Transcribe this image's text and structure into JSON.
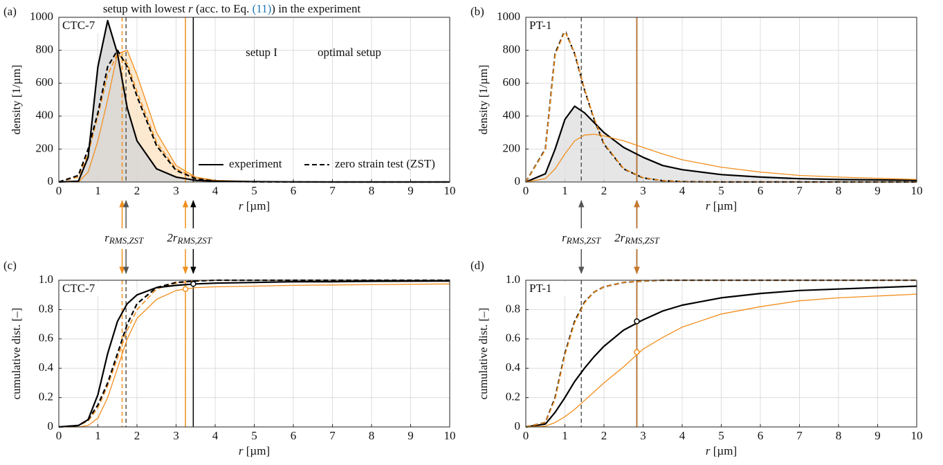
{
  "chart_data": [
    {
      "type": "line",
      "label": "(a)",
      "inset_label": "CTC-7",
      "xlabel_var": "r",
      "xlabel_unit": " [µm]",
      "ylabel": "density [1/µm]",
      "x": [
        0,
        0.5,
        0.75,
        1,
        1.25,
        1.5,
        1.75,
        2,
        2.5,
        3,
        3.5,
        4,
        5,
        6,
        7,
        8,
        10
      ],
      "xlim": [
        0,
        10
      ],
      "xticks": [
        0,
        1,
        2,
        3,
        4,
        5,
        6,
        7,
        8,
        9,
        10
      ],
      "ylim": [
        0,
        1000
      ],
      "yticks": [
        0,
        200,
        400,
        600,
        800,
        1000
      ],
      "grid": true,
      "series": [
        {
          "color": "#f28e1c",
          "dash": false,
          "width": 1.3,
          "fill": "#fbe3c4",
          "values": [
            0,
            0,
            60,
            250,
            500,
            780,
            800,
            650,
            300,
            100,
            30,
            10,
            3,
            1,
            0,
            0,
            0
          ]
        },
        {
          "color": "#f28e1c",
          "dash": true,
          "width": 1.6,
          "values": [
            0,
            30,
            170,
            400,
            650,
            780,
            720,
            550,
            240,
            80,
            25,
            7,
            2,
            0,
            0,
            0,
            0
          ]
        },
        {
          "color": "#000000",
          "dash": false,
          "width": 2.2,
          "fill": "#d4d4d4",
          "values": [
            0,
            5,
            150,
            700,
            980,
            780,
            450,
            250,
            80,
            30,
            10,
            5,
            2,
            1,
            0,
            0,
            0
          ]
        },
        {
          "color": "#000000",
          "dash": true,
          "width": 2.2,
          "values": [
            0,
            40,
            200,
            420,
            700,
            800,
            700,
            520,
            220,
            70,
            20,
            5,
            1,
            0,
            0,
            0,
            0
          ]
        }
      ],
      "vlines": [
        {
          "x": 1.62,
          "color": "#f28e1c",
          "dash": true
        },
        {
          "x": 1.72,
          "color": "#555555",
          "dash": true
        },
        {
          "x": 3.24,
          "color": "#f28e1c",
          "dash": false
        },
        {
          "x": 3.44,
          "color": "#000000",
          "dash": false
        }
      ],
      "legend": [
        {
          "label": "experiment",
          "dash": false
        },
        {
          "label": "zero strain test (ZST)",
          "dash": true
        }
      ],
      "annotation": {
        "pre": "setup with lowest ",
        "var": "r",
        "mid": " (acc. to Eq. ",
        "ref": "(11)",
        "post": ") in the experiment"
      },
      "inset_texts": [
        "setup I",
        "optimal setup"
      ]
    },
    {
      "type": "line",
      "label": "(b)",
      "inset_label": "PT-1",
      "xlabel_var": "r",
      "xlabel_unit": " [µm]",
      "ylabel": "density [1/µm]",
      "x": [
        0,
        0.5,
        0.75,
        1,
        1.25,
        1.5,
        1.75,
        2,
        2.5,
        3,
        3.5,
        4,
        5,
        6,
        7,
        8,
        10
      ],
      "xlim": [
        0,
        10
      ],
      "xticks": [
        0,
        1,
        2,
        3,
        4,
        5,
        6,
        7,
        8,
        9,
        10
      ],
      "ylim": [
        0,
        1000
      ],
      "yticks": [
        0,
        200,
        400,
        600,
        800,
        1000
      ],
      "grid": true,
      "series": [
        {
          "color": "#000000",
          "dash": false,
          "width": 2.2,
          "fill": "#e0e0e0",
          "values": [
            0,
            50,
            200,
            380,
            460,
            420,
            360,
            300,
            210,
            150,
            100,
            75,
            45,
            30,
            20,
            15,
            10
          ]
        },
        {
          "color": "#f28e1c",
          "dash": false,
          "width": 1.3,
          "values": [
            0,
            20,
            80,
            170,
            250,
            285,
            290,
            280,
            250,
            210,
            170,
            135,
            90,
            60,
            40,
            30,
            15
          ]
        },
        {
          "color": "#000000",
          "dash": true,
          "width": 2.2,
          "values": [
            0,
            200,
            780,
            920,
            780,
            560,
            380,
            230,
            80,
            25,
            8,
            2,
            0,
            0,
            0,
            0,
            0
          ]
        },
        {
          "color": "#f28e1c",
          "dash": true,
          "width": 1.6,
          "values": [
            0,
            195,
            770,
            915,
            785,
            565,
            385,
            235,
            82,
            26,
            8,
            2,
            0,
            0,
            0,
            0,
            0
          ]
        }
      ],
      "vlines": [
        {
          "x": 1.42,
          "color": "#555555",
          "dash": true
        },
        {
          "x": 2.84,
          "color": "#000000",
          "dash": false
        },
        {
          "x": 2.84,
          "color": "#c8782a",
          "dash": false
        }
      ]
    },
    {
      "type": "line",
      "label": "(c)",
      "inset_label": "CTC-7",
      "xlabel_var": "r",
      "xlabel_unit": " [µm]",
      "ylabel": "cumulative dist. [–]",
      "x": [
        0,
        0.5,
        0.75,
        1,
        1.25,
        1.5,
        1.75,
        2,
        2.5,
        3,
        3.5,
        4,
        5,
        6,
        7,
        8,
        10
      ],
      "xlim": [
        0,
        10
      ],
      "xticks": [
        0,
        1,
        2,
        3,
        4,
        5,
        6,
        7,
        8,
        9,
        10
      ],
      "ylim": [
        0,
        1
      ],
      "yticks": [
        0,
        0.2,
        0.4,
        0.6,
        0.8,
        {
          "value": 1,
          "label": "1.0"
        }
      ],
      "grid": true,
      "series": [
        {
          "color": "#f28e1c",
          "dash": false,
          "width": 1.3,
          "values": [
            0,
            0,
            0.01,
            0.06,
            0.2,
            0.4,
            0.6,
            0.74,
            0.87,
            0.93,
            0.95,
            0.955,
            0.96,
            0.965,
            0.968,
            0.97,
            0.975
          ]
        },
        {
          "color": "#f28e1c",
          "dash": true,
          "width": 1.6,
          "values": [
            0,
            0.01,
            0.04,
            0.13,
            0.28,
            0.47,
            0.66,
            0.8,
            0.94,
            0.98,
            0.995,
            1,
            1,
            1,
            1,
            1,
            1
          ]
        },
        {
          "color": "#000000",
          "dash": false,
          "width": 2.2,
          "values": [
            0,
            0.01,
            0.05,
            0.22,
            0.5,
            0.72,
            0.84,
            0.9,
            0.95,
            0.965,
            0.975,
            0.98,
            0.985,
            0.99,
            0.99,
            0.993,
            0.995
          ]
        },
        {
          "color": "#000000",
          "dash": true,
          "width": 2.2,
          "values": [
            0,
            0.01,
            0.05,
            0.15,
            0.3,
            0.5,
            0.7,
            0.84,
            0.95,
            0.985,
            0.995,
            1,
            1,
            1,
            1,
            1,
            1
          ]
        }
      ],
      "vlines": [
        {
          "x": 1.62,
          "color": "#f28e1c",
          "dash": true
        },
        {
          "x": 1.72,
          "color": "#555555",
          "dash": true
        },
        {
          "x": 3.24,
          "color": "#f28e1c",
          "dash": false
        },
        {
          "x": 3.44,
          "color": "#000000",
          "dash": false
        }
      ],
      "markers": [
        {
          "x": 3.24,
          "y": 0.94,
          "color": "#f28e1c"
        },
        {
          "x": 3.44,
          "y": 0.975,
          "color": "#000000"
        }
      ],
      "arrow_labels": [
        {
          "text": "r",
          "sub": "RMS,ZST"
        },
        {
          "text": "2r",
          "sub": "RMS,ZST"
        }
      ]
    },
    {
      "type": "line",
      "label": "(d)",
      "inset_label": "PT-1",
      "xlabel_var": "r",
      "xlabel_unit": " [µm]",
      "ylabel": "cumulative dist. [–]",
      "x": [
        0,
        0.5,
        0.75,
        1,
        1.25,
        1.5,
        1.75,
        2,
        2.5,
        3,
        3.5,
        4,
        5,
        6,
        7,
        8,
        10
      ],
      "xlim": [
        0,
        10
      ],
      "xticks": [
        0,
        1,
        2,
        3,
        4,
        5,
        6,
        7,
        8,
        9,
        10
      ],
      "ylim": [
        0,
        1
      ],
      "yticks": [
        0,
        0.2,
        0.4,
        0.6,
        0.8,
        {
          "value": 1,
          "label": "1.0"
        }
      ],
      "grid": true,
      "series": [
        {
          "color": "#000000",
          "dash": false,
          "width": 2.2,
          "values": [
            0,
            0.02,
            0.1,
            0.2,
            0.31,
            0.4,
            0.48,
            0.55,
            0.66,
            0.73,
            0.79,
            0.83,
            0.88,
            0.91,
            0.93,
            0.94,
            0.96
          ]
        },
        {
          "color": "#f28e1c",
          "dash": false,
          "width": 1.3,
          "values": [
            0,
            0.005,
            0.03,
            0.07,
            0.12,
            0.18,
            0.24,
            0.3,
            0.41,
            0.53,
            0.61,
            0.68,
            0.77,
            0.82,
            0.86,
            0.88,
            0.905
          ]
        },
        {
          "color": "#000000",
          "dash": true,
          "width": 2.2,
          "values": [
            0,
            0.03,
            0.2,
            0.5,
            0.72,
            0.85,
            0.92,
            0.955,
            0.985,
            0.995,
            1,
            1,
            1,
            1,
            1,
            1,
            1
          ]
        },
        {
          "color": "#f28e1c",
          "dash": true,
          "width": 1.6,
          "values": [
            0,
            0.03,
            0.19,
            0.49,
            0.71,
            0.845,
            0.92,
            0.955,
            0.985,
            0.995,
            1,
            1,
            1,
            1,
            1,
            1,
            1
          ]
        }
      ],
      "vlines": [
        {
          "x": 1.42,
          "color": "#555555",
          "dash": true
        },
        {
          "x": 2.84,
          "color": "#000000",
          "dash": false
        },
        {
          "x": 2.84,
          "color": "#c8782a",
          "dash": false
        }
      ],
      "markers": [
        {
          "x": 2.84,
          "y": 0.51,
          "color": "#f28e1c"
        },
        {
          "x": 2.84,
          "y": 0.72,
          "color": "#000000"
        }
      ],
      "arrow_labels": [
        {
          "text": "r",
          "sub": "RMS,ZST"
        },
        {
          "text": "2r",
          "sub": "RMS,ZST"
        }
      ]
    }
  ]
}
